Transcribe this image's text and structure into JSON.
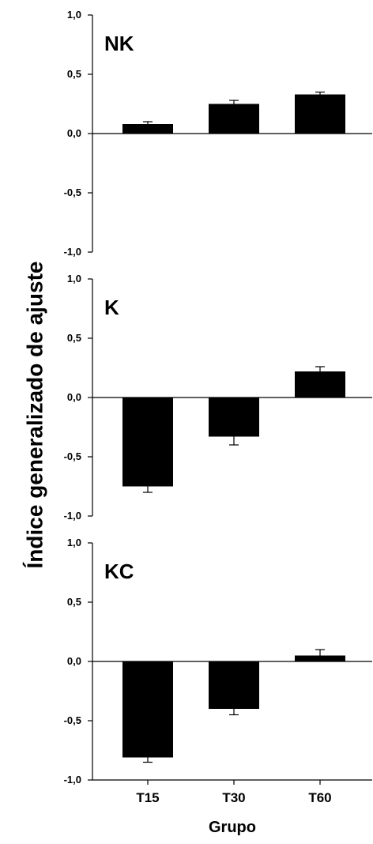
{
  "chart_data": {
    "type": "bar",
    "categories": [
      "T15",
      "T30",
      "T60"
    ],
    "xlabel": "Grupo",
    "ylabel": "Índice generalizado de ajuste",
    "ylim": [
      -1.0,
      1.0
    ],
    "yticks": [
      "1,0",
      "0,5",
      "0,0",
      "-0,5",
      "-1,0"
    ],
    "bar_color": "#000000",
    "error_bars": true,
    "grid": false,
    "panels": [
      {
        "label": "NK",
        "values": [
          0.08,
          0.25,
          0.33
        ],
        "errors": [
          0.02,
          0.03,
          0.02
        ]
      },
      {
        "label": "K",
        "values": [
          -0.75,
          -0.33,
          0.22
        ],
        "errors": [
          0.05,
          0.07,
          0.04
        ]
      },
      {
        "label": "KC",
        "values": [
          -0.81,
          -0.4,
          0.05
        ],
        "errors": [
          0.04,
          0.05,
          0.05
        ]
      }
    ]
  }
}
